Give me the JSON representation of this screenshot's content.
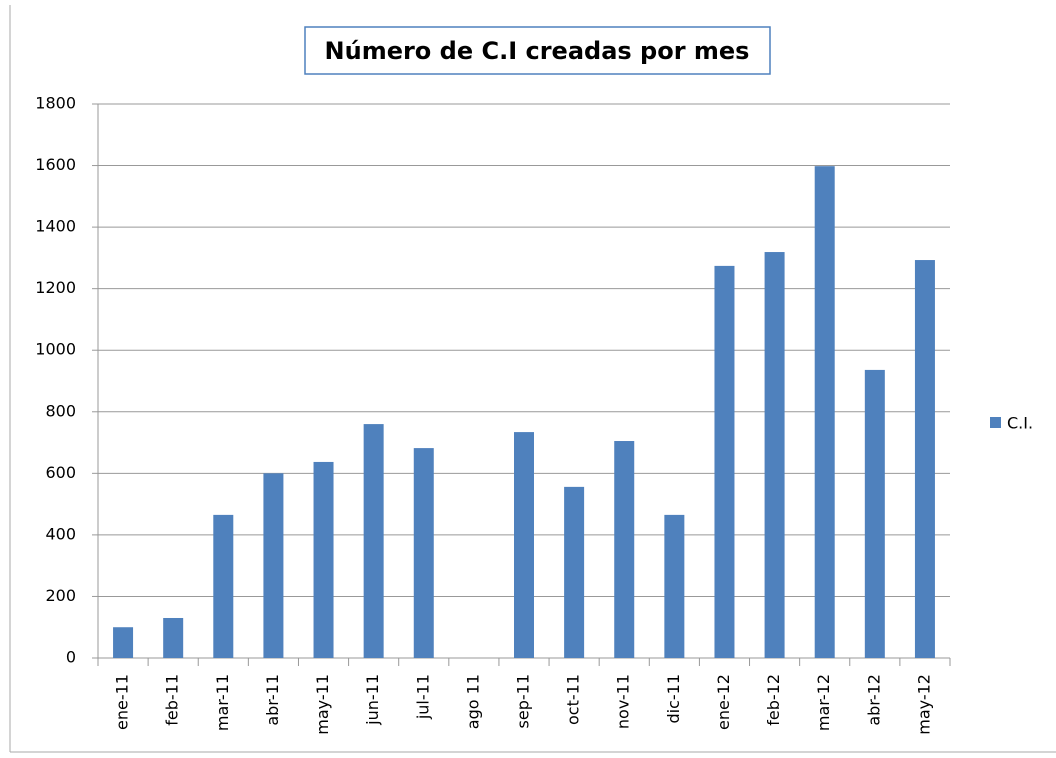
{
  "chart_data": {
    "type": "bar",
    "title": "Número de C.I creadas por mes",
    "categories": [
      "ene-11",
      "feb-11",
      "mar-11",
      "abr-11",
      "may-11",
      "jun-11",
      "jul-11",
      "ago 11",
      "sep-11",
      "oct-11",
      "nov-11",
      "dic-11",
      "ene-12",
      "feb-12",
      "mar-12",
      "abr-12",
      "may-12"
    ],
    "series": [
      {
        "name": "C.I.",
        "color": "#4f81bd",
        "values": [
          100,
          130,
          465,
          600,
          637,
          760,
          682,
          0,
          734,
          556,
          705,
          465,
          1274,
          1319,
          1598,
          936,
          1293
        ]
      }
    ],
    "ylim": [
      0,
      1800
    ],
    "yticks": [
      0,
      200,
      400,
      600,
      800,
      1000,
      1200,
      1400,
      1600,
      1800
    ],
    "grid": true,
    "legend": "right"
  }
}
